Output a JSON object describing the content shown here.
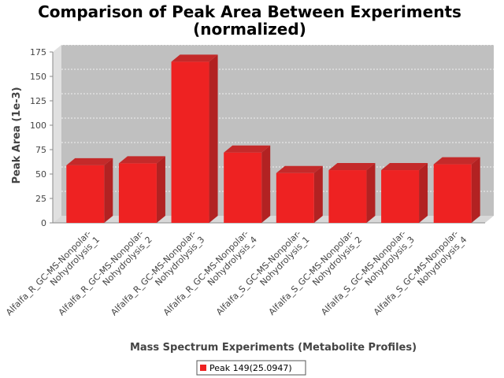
{
  "chart_data": {
    "type": "bar",
    "title_line1": "Comparison of Peak Area Between Experiments",
    "title_line2": "(normalized)",
    "xlabel": "Mass Spectrum Experiments (Metabolite Profiles)",
    "ylabel": "Peak Area (1e-3)",
    "ylim": [
      0,
      175
    ],
    "yticks": [
      0,
      25,
      50,
      75,
      100,
      125,
      150,
      175
    ],
    "grid": true,
    "legend_position": "bottom",
    "bar_color": "#ee2222",
    "categories": [
      [
        "Alfalfa_R_GC-MS-Nonpolar-",
        "Nohydrolysis_1"
      ],
      [
        "Alfalfa_R_GC-MS-Nonpolar-",
        "Nohydrolysis_2"
      ],
      [
        "Alfalfa_R_GC-MS-Nonpolar-",
        "Nohydrolysis_3"
      ],
      [
        "Alfalfa_R_GC-MS-Nonpolar-",
        "Nohydrolysis_4"
      ],
      [
        "Alfalfa_S_GC-MS-Nonpolar-",
        "Nohydrolysis_1"
      ],
      [
        "Alfalfa_S_GC-MS-Nonpolar-",
        "Nohydrolysis_2"
      ],
      [
        "Alfalfa_S_GC-MS-Nonpolar-",
        "Nohydrolysis_3"
      ],
      [
        "Alfalfa_S_GC-MS-Nonpolar-",
        "Nohydrolysis_4"
      ]
    ],
    "series": [
      {
        "name": "Peak 149(25.0947)",
        "values": [
          59,
          61,
          165,
          72,
          51,
          54,
          54,
          60
        ]
      }
    ]
  }
}
